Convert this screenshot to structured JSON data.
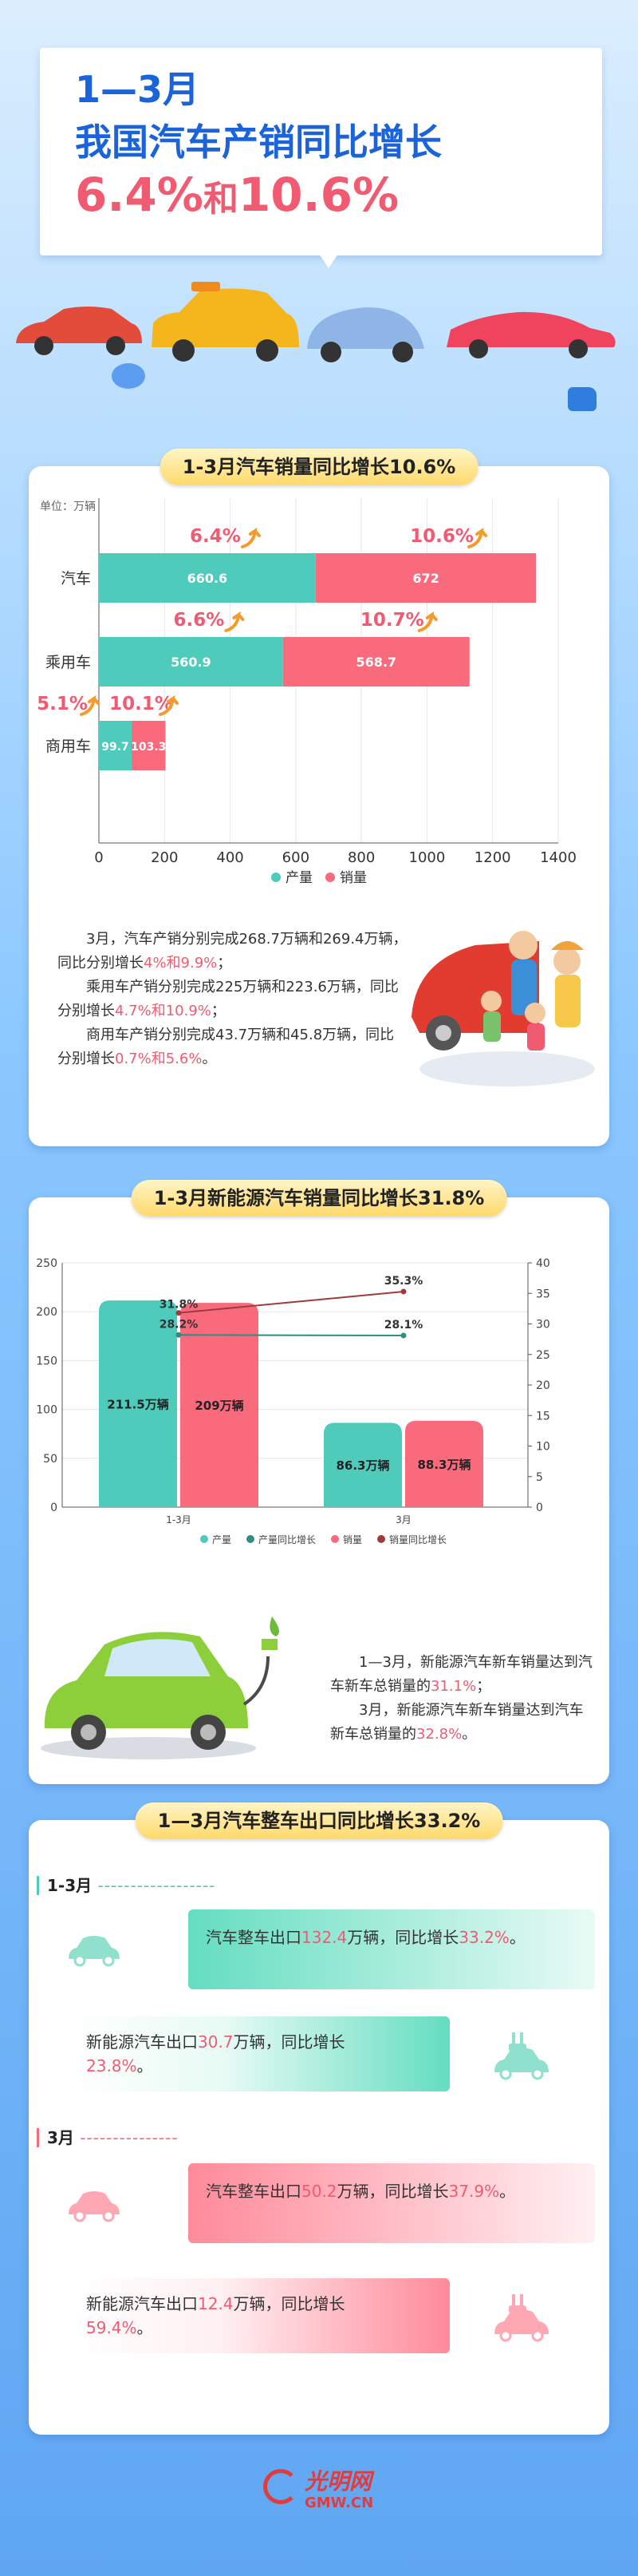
{
  "header": {
    "line1": "1—3月",
    "line2": "我国汽车产销同比增长",
    "pct1": "6.4%",
    "and": "和",
    "pct2": "10.6%"
  },
  "section1": {
    "title": "1-3月汽车销量同比增长10.6%",
    "unit": "单位：万辆",
    "legend": [
      "产量",
      "销量"
    ],
    "paragraphs": [
      {
        "a": "3月，汽车产销分别完成268.7万辆和269.4万辆，同比分别增长",
        "h": "4%和9.9%",
        "b": "；"
      },
      {
        "a": "乘用车产销分别完成225万辆和223.6万辆，同比分别增长",
        "h": "4.7%和10.9%",
        "b": "；"
      },
      {
        "a": "商用车产销分别完成43.7万辆和45.8万辆，同比分别增长",
        "h": "0.7%和5.6%",
        "b": "。"
      }
    ]
  },
  "section2": {
    "title": "1-3月新能源汽车销量同比增长31.8%",
    "legend": [
      "产量",
      "产量同比增长",
      "销量",
      "销量同比增长"
    ],
    "p1": {
      "a": "1—3月，新能源汽车新车销量达到汽车新车总销量的",
      "h": "31.1%",
      "b": "；"
    },
    "p2": {
      "a": "3月，新能源汽车新车销量达到汽车新车总销量的",
      "h": "32.8%",
      "b": "。"
    }
  },
  "section3": {
    "title": "1—3月汽车整车出口同比增长33.2%",
    "period1": "1-3月",
    "period2": "3月",
    "items": [
      {
        "a": "汽车整车出口",
        "n": "132.4",
        "b": "万辆，同比增长",
        "p": "33.2%",
        "c": "。"
      },
      {
        "a": "新能源汽车出口",
        "n": "30.7",
        "b": "万辆，同比增长",
        "p": "23.8%",
        "c": "。"
      },
      {
        "a": "汽车整车出口",
        "n": "50.2",
        "b": "万辆，同比增长",
        "p": "37.9%",
        "c": "。"
      },
      {
        "a": "新能源汽车出口",
        "n": "12.4",
        "b": "万辆，同比增长",
        "p": "59.4%",
        "c": "。"
      }
    ]
  },
  "footer": {
    "logo": "光明网",
    "sub": "GMW.CN"
  },
  "colors": {
    "green": "#4ecbbb",
    "red": "#f86a7c",
    "orange": "#f59b2b",
    "darkred": "#a23a3a",
    "teal": "#2f8f7f"
  },
  "chart_data": [
    {
      "type": "bar",
      "orientation": "horizontal",
      "categories": [
        "汽车",
        "乘用车",
        "商用车"
      ],
      "series": [
        {
          "name": "产量",
          "values": [
            660.6,
            560.9,
            99.7
          ]
        },
        {
          "name": "销量",
          "values": [
            672,
            568.7,
            103.3
          ]
        }
      ],
      "growth_labels": [
        [
          "6.4%",
          "10.6%"
        ],
        [
          "6.6%",
          "10.7%"
        ],
        [
          "5.1%",
          "10.1%"
        ]
      ],
      "xlim": [
        0,
        1400
      ],
      "xticks": [
        0,
        200,
        400,
        600,
        800,
        1000,
        1200,
        1400
      ],
      "legend": "bottom"
    },
    {
      "type": "bar",
      "categories": [
        "1-3月",
        "3月"
      ],
      "series": [
        {
          "name": "产量",
          "values": [
            211.5,
            86.3
          ],
          "labels": [
            "211.5万辆",
            "86.3万辆"
          ]
        },
        {
          "name": "销量",
          "values": [
            209,
            88.3
          ],
          "labels": [
            "209万辆",
            "88.3万辆"
          ]
        }
      ],
      "lines": [
        {
          "name": "产量同比增长",
          "values": [
            28.2,
            28.1
          ],
          "labels": [
            "28.2%",
            "28.1%"
          ]
        },
        {
          "name": "销量同比增长",
          "values": [
            31.8,
            35.3
          ],
          "labels": [
            "31.8%",
            "35.3%"
          ]
        }
      ],
      "ylim": [
        0,
        250
      ],
      "yticks": [
        0,
        50,
        100,
        150,
        200,
        250
      ],
      "y2lim": [
        0,
        40
      ],
      "y2ticks": [
        0,
        5,
        10,
        15,
        20,
        25,
        30,
        35,
        40
      ],
      "legend": "bottom"
    }
  ]
}
